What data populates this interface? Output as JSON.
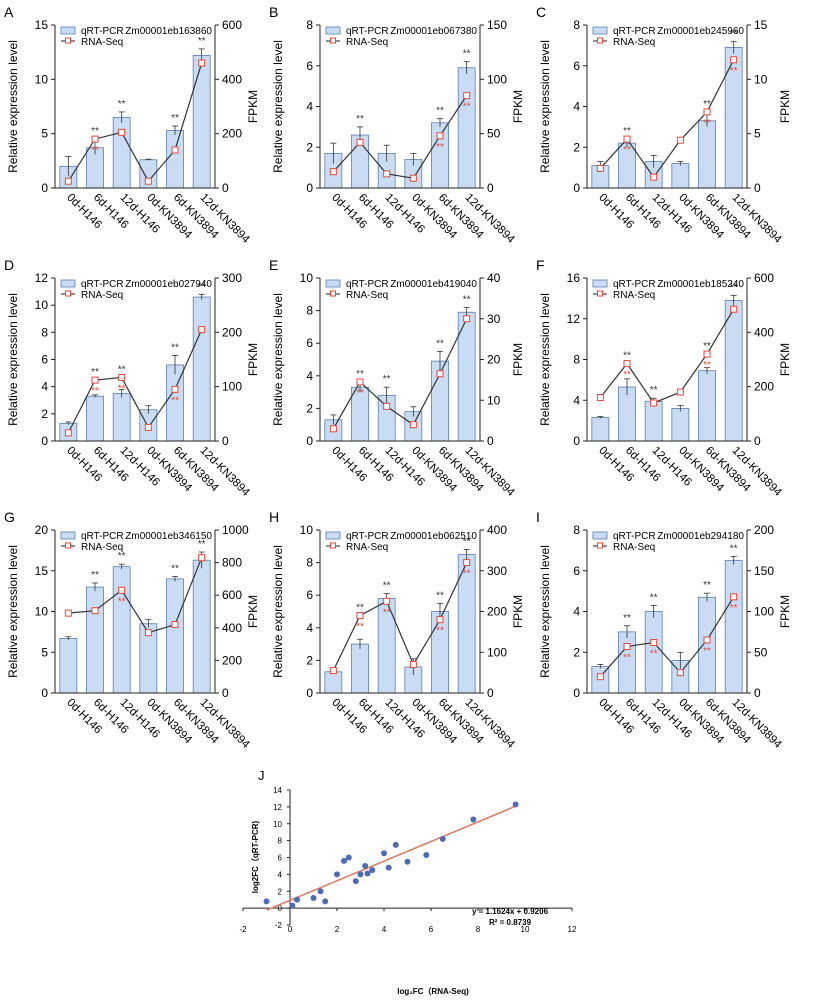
{
  "colors": {
    "bar_fill": "#c9dcf3",
    "bar_stroke": "#5b7fb5",
    "line": "#333333",
    "seq_marker": "#e04a3c",
    "star_black": "#333333",
    "star_red": "#e04a3c",
    "scatter_point": "#4f6bb3",
    "fit_line": "#d9806a"
  },
  "chart_data": [
    {
      "panel": "A",
      "type": "bar+line",
      "gene": "Zm00001eb163860",
      "categories": [
        "0d-H146",
        "6d-H146",
        "12d-H146",
        "0d-KN3894",
        "6d-KN3894",
        "12d-KN3894"
      ],
      "ylabel": "Relative expression level",
      "y2label": "FPKM",
      "ylim": [
        0,
        15
      ],
      "yticks": [
        0,
        5,
        10,
        15
      ],
      "y2lim": [
        0,
        600
      ],
      "y2ticks": [
        0,
        200,
        400,
        600
      ],
      "legend": [
        "qRT-PCR",
        "RNA-Seq"
      ],
      "series": [
        {
          "name": "qRT-PCR",
          "values": [
            2.0,
            3.7,
            6.5,
            2.6,
            5.3,
            12.2
          ],
          "errors": [
            0.9,
            0.6,
            0.5,
            0.05,
            0.4,
            0.6
          ]
        },
        {
          "name": "RNA-Seq",
          "values": [
            25,
            180,
            205,
            25,
            140,
            460
          ]
        }
      ],
      "stars_black": [
        "",
        "**",
        "**",
        "",
        "**",
        "**"
      ],
      "stars_red": [
        "",
        "**",
        "",
        "",
        "",
        ""
      ]
    },
    {
      "panel": "B",
      "type": "bar+line",
      "gene": "Zm00001eb067380",
      "categories": [
        "0d-H146",
        "6d-H146",
        "12d-H146",
        "0d-KN3894",
        "6d-KN3894",
        "12d-KN3894"
      ],
      "ylabel": "Relative expression level",
      "y2label": "FPKM",
      "ylim": [
        0,
        8
      ],
      "yticks": [
        0,
        2,
        4,
        6,
        8
      ],
      "y2lim": [
        0,
        150
      ],
      "y2ticks": [
        0,
        50,
        100,
        150
      ],
      "legend": [
        "qRT-PCR",
        "RNA-Seq"
      ],
      "series": [
        {
          "name": "qRT-PCR",
          "values": [
            1.7,
            2.6,
            1.7,
            1.4,
            3.2,
            5.9
          ],
          "errors": [
            0.5,
            0.4,
            0.4,
            0.3,
            0.2,
            0.3
          ]
        },
        {
          "name": "RNA-Seq",
          "values": [
            15,
            42,
            13,
            9,
            48,
            85
          ]
        }
      ],
      "stars_black": [
        "",
        "**",
        "",
        "",
        "**",
        "**"
      ],
      "stars_red": [
        "",
        "",
        "",
        "",
        "**",
        "**"
      ]
    },
    {
      "panel": "C",
      "type": "bar+line",
      "gene": "Zm00001eb245960",
      "categories": [
        "0d-H146",
        "6d-H146",
        "12d-H146",
        "0d-KN3894",
        "6d-KN3894",
        "12d-KN3894"
      ],
      "ylabel": "Relative expression level",
      "y2label": "FPKM",
      "ylim": [
        0,
        8
      ],
      "yticks": [
        0,
        2,
        4,
        6,
        8
      ],
      "y2lim": [
        0,
        15
      ],
      "y2ticks": [
        0,
        5,
        10,
        15
      ],
      "legend": [
        "qRT-PCR",
        "RNA-Seq"
      ],
      "series": [
        {
          "name": "qRT-PCR",
          "values": [
            1.1,
            2.2,
            1.3,
            1.2,
            3.3,
            6.9
          ],
          "errors": [
            0.2,
            0.2,
            0.3,
            0.1,
            0.3,
            0.3
          ]
        },
        {
          "name": "RNA-Seq",
          "values": [
            1.8,
            4.5,
            1.0,
            4.4,
            7.0,
            11.8
          ]
        }
      ],
      "stars_black": [
        "",
        "**",
        "",
        "",
        "**",
        "**"
      ],
      "stars_red": [
        "",
        "**",
        "",
        "",
        "**",
        "**"
      ]
    },
    {
      "panel": "D",
      "type": "bar+line",
      "gene": "Zm00001eb027940",
      "categories": [
        "0d-H146",
        "6d-H146",
        "12d-H146",
        "0d-KN3894",
        "6d-KN3894",
        "12d-KN3894"
      ],
      "ylabel": "Relative expression level",
      "y2label": "FPKM",
      "ylim": [
        0,
        12
      ],
      "yticks": [
        0,
        2,
        4,
        6,
        8,
        10,
        12
      ],
      "y2lim": [
        0,
        300
      ],
      "y2ticks": [
        0,
        100,
        200,
        300
      ],
      "legend": [
        "qRT-PCR",
        "RNA-Seq"
      ],
      "series": [
        {
          "name": "qRT-PCR",
          "values": [
            1.3,
            3.3,
            3.5,
            2.3,
            5.6,
            10.6
          ],
          "errors": [
            0.1,
            0.1,
            0.3,
            0.3,
            0.7,
            0.2
          ]
        },
        {
          "name": "RNA-Seq",
          "values": [
            15,
            112,
            117,
            25,
            95,
            205
          ]
        }
      ],
      "stars_black": [
        "",
        "**",
        "**",
        "",
        "**",
        "**"
      ],
      "stars_red": [
        "",
        "**",
        "**",
        "",
        "**",
        ""
      ]
    },
    {
      "panel": "E",
      "type": "bar+line",
      "gene": "Zm00001eb419040",
      "categories": [
        "0d-H146",
        "6d-H146",
        "12d-H146",
        "0d-KN3894",
        "6d-KN3894",
        "12d-KN3894"
      ],
      "ylabel": "Relative expression level",
      "y2label": "FPKM",
      "ylim": [
        0,
        10
      ],
      "yticks": [
        0,
        2,
        4,
        6,
        8,
        10
      ],
      "y2lim": [
        0,
        40
      ],
      "y2ticks": [
        0,
        10,
        20,
        30,
        40
      ],
      "legend": [
        "qRT-PCR",
        "RNA-Seq"
      ],
      "series": [
        {
          "name": "qRT-PCR",
          "values": [
            1.3,
            3.3,
            2.8,
            1.8,
            4.9,
            7.9
          ],
          "errors": [
            0.3,
            0.3,
            0.5,
            0.3,
            0.6,
            0.3
          ]
        },
        {
          "name": "RNA-Seq",
          "values": [
            3,
            14.5,
            8.5,
            4,
            16.5,
            30
          ]
        }
      ],
      "stars_black": [
        "",
        "**",
        "**",
        "",
        "**",
        "**"
      ],
      "stars_red": [
        "",
        "**",
        "",
        "",
        "",
        ""
      ]
    },
    {
      "panel": "F",
      "type": "bar+line",
      "gene": "Zm00001eb185240",
      "categories": [
        "0d-H146",
        "6d-H146",
        "12d-H146",
        "0d-KN3894",
        "6d-KN3894",
        "12d-KN3894"
      ],
      "ylabel": "Relative expression level",
      "y2label": "FPKM",
      "ylim": [
        0,
        16
      ],
      "yticks": [
        0,
        4,
        8,
        12,
        16
      ],
      "y2lim": [
        0,
        600
      ],
      "y2ticks": [
        0,
        200,
        400,
        600
      ],
      "legend": [
        "qRT-PCR",
        "RNA-Seq"
      ],
      "series": [
        {
          "name": "qRT-PCR",
          "values": [
            2.3,
            5.3,
            3.9,
            3.2,
            6.9,
            13.8
          ],
          "errors": [
            0.1,
            0.8,
            0.3,
            0.3,
            0.3,
            0.5
          ]
        },
        {
          "name": "RNA-Seq",
          "values": [
            160,
            285,
            140,
            180,
            320,
            485
          ]
        }
      ],
      "stars_black": [
        "",
        "**",
        "**",
        "",
        "**",
        "**"
      ],
      "stars_red": [
        "",
        "**",
        "",
        "",
        "**",
        ""
      ]
    },
    {
      "panel": "G",
      "type": "bar+line",
      "gene": "Zm00001eb346150",
      "categories": [
        "0d-H146",
        "6d-H146",
        "12d-H146",
        "0d-KN3894",
        "6d-KN3894",
        "12d-KN3894"
      ],
      "ylabel": "Relative expression level",
      "y2label": "FPKM",
      "ylim": [
        0,
        20
      ],
      "yticks": [
        0,
        5,
        10,
        15,
        20
      ],
      "y2lim": [
        0,
        1000
      ],
      "y2ticks": [
        0,
        200,
        400,
        600,
        800,
        1000
      ],
      "legend": [
        "qRT-PCR",
        "RNA-Seq"
      ],
      "series": [
        {
          "name": "qRT-PCR",
          "values": [
            6.7,
            13.0,
            15.5,
            8.5,
            14.0,
            16.3
          ],
          "errors": [
            0.2,
            0.5,
            0.3,
            0.5,
            0.3,
            1.0
          ]
        },
        {
          "name": "RNA-Seq",
          "values": [
            490,
            505,
            630,
            370,
            420,
            830
          ]
        }
      ],
      "stars_black": [
        "",
        "**",
        "**",
        "",
        "**",
        "**"
      ],
      "stars_red": [
        "",
        "",
        "**",
        "",
        "",
        ""
      ]
    },
    {
      "panel": "H",
      "type": "bar+line",
      "gene": "Zm00001eb062510",
      "categories": [
        "0d-H146",
        "6d-H146",
        "12d-H146",
        "0d-KN3894",
        "6d-KN3894",
        "12d-KN3894"
      ],
      "ylabel": "Relative expression level",
      "y2label": "FPKM",
      "ylim": [
        0,
        10
      ],
      "yticks": [
        0,
        2,
        4,
        6,
        8,
        10
      ],
      "y2lim": [
        0,
        400
      ],
      "y2ticks": [
        0,
        100,
        200,
        300,
        400
      ],
      "legend": [
        "qRT-PCR",
        "RNA-Seq"
      ],
      "series": [
        {
          "name": "qRT-PCR",
          "values": [
            1.3,
            3.0,
            5.8,
            1.6,
            5.0,
            8.5
          ],
          "errors": [
            0.1,
            0.3,
            0.3,
            0.5,
            0.5,
            0.3
          ]
        },
        {
          "name": "RNA-Seq",
          "values": [
            55,
            190,
            225,
            70,
            180,
            320
          ]
        }
      ],
      "stars_black": [
        "",
        "**",
        "**",
        "",
        "**",
        "**"
      ],
      "stars_red": [
        "",
        "**",
        "**",
        "",
        "**",
        "**"
      ]
    },
    {
      "panel": "I",
      "type": "bar+line",
      "gene": "Zm00001eb294180",
      "categories": [
        "0d-H146",
        "6d-H146",
        "12d-H146",
        "0d-KN3894",
        "6d-KN3894",
        "12d-KN3894"
      ],
      "ylabel": "Relative expression level",
      "y2label": "FPKM",
      "ylim": [
        0,
        8
      ],
      "yticks": [
        0,
        2,
        4,
        6,
        8
      ],
      "y2lim": [
        0,
        200
      ],
      "y2ticks": [
        0,
        50,
        100,
        150,
        200
      ],
      "legend": [
        "qRT-PCR",
        "RNA-Seq"
      ],
      "series": [
        {
          "name": "qRT-PCR",
          "values": [
            1.3,
            3.0,
            4.0,
            1.6,
            4.7,
            6.5
          ],
          "errors": [
            0.1,
            0.3,
            0.3,
            0.4,
            0.2,
            0.2
          ]
        },
        {
          "name": "RNA-Seq",
          "values": [
            20,
            57,
            62,
            25,
            65,
            118
          ]
        }
      ],
      "stars_black": [
        "",
        "**",
        "**",
        "",
        "**",
        "**"
      ],
      "stars_red": [
        "",
        "**",
        "**",
        "",
        "**",
        "**"
      ]
    },
    {
      "panel": "J",
      "type": "scatter",
      "xlabel": "log₂FC（RNA-Seq)",
      "ylabel": "log2FC（qRT-PCR)",
      "xlim": [
        -2,
        12
      ],
      "xticks": [
        -2,
        0,
        2,
        4,
        6,
        8,
        10,
        12
      ],
      "ylim": [
        -2,
        14
      ],
      "yticks": [
        -2,
        0,
        2,
        4,
        6,
        8,
        10,
        12,
        14
      ],
      "equation": "y = 1.1624x + 0.9206",
      "r2": "R² = 0.8739",
      "fit": {
        "slope": 1.1624,
        "intercept": 0.9206,
        "x_range": [
          -1.0,
          9.6
        ]
      },
      "points": [
        [
          -1.0,
          0.8
        ],
        [
          0.1,
          0.3
        ],
        [
          0.3,
          1.0
        ],
        [
          1.0,
          1.2
        ],
        [
          1.3,
          2.0
        ],
        [
          1.5,
          0.8
        ],
        [
          2.0,
          4.0
        ],
        [
          2.3,
          5.6
        ],
        [
          2.5,
          6.0
        ],
        [
          2.8,
          3.2
        ],
        [
          3.0,
          4.0
        ],
        [
          3.2,
          5.0
        ],
        [
          3.5,
          4.5
        ],
        [
          4.0,
          6.5
        ],
        [
          4.2,
          4.8
        ],
        [
          4.5,
          7.5
        ],
        [
          5.0,
          5.5
        ],
        [
          5.8,
          6.3
        ],
        [
          6.5,
          8.2
        ],
        [
          7.8,
          10.5
        ],
        [
          9.6,
          12.3
        ],
        [
          3.3,
          4.1
        ]
      ]
    }
  ]
}
